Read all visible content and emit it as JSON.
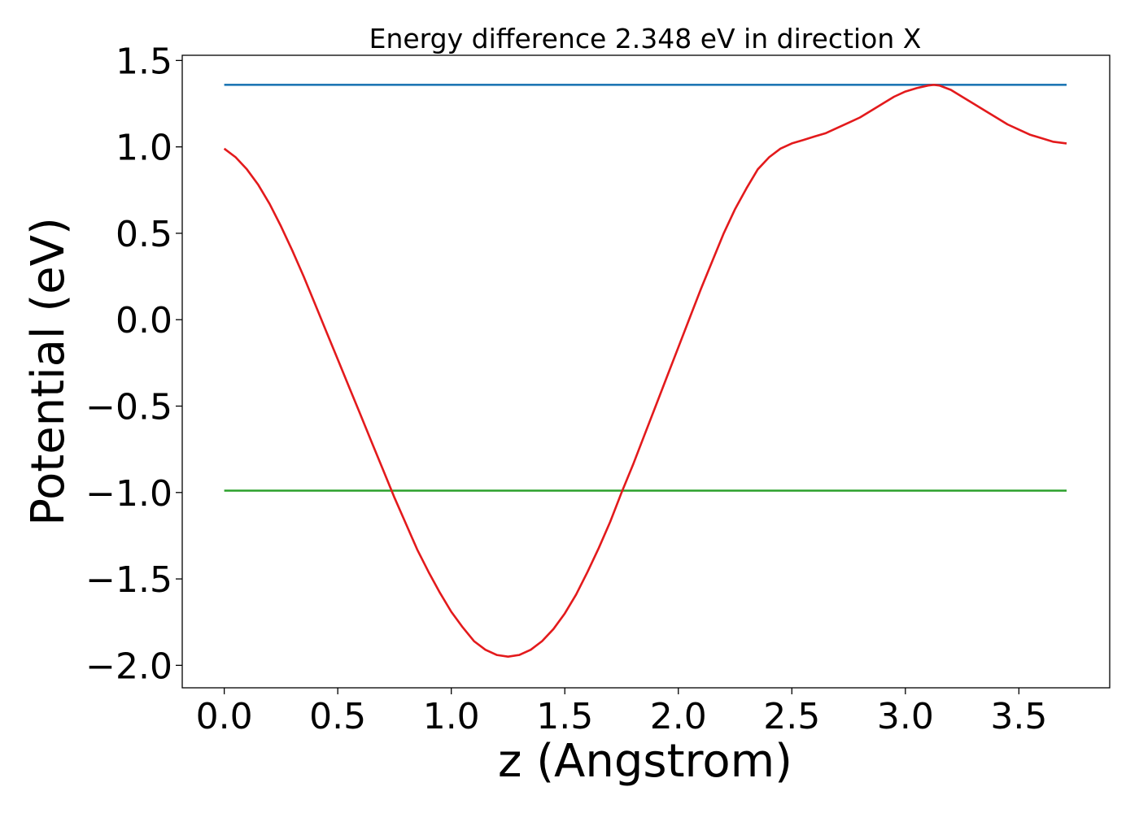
{
  "chart_data": {
    "type": "line",
    "title": "Energy difference 2.348 eV in direction X",
    "xlabel": "z (Angstrom)",
    "ylabel": "Potential (eV)",
    "xlim": [
      -0.185,
      3.9
    ],
    "ylim": [
      -2.13,
      1.53
    ],
    "xticks": [
      0.0,
      0.5,
      1.0,
      1.5,
      2.0,
      2.5,
      3.0,
      3.5
    ],
    "xtick_labels": [
      "0.0",
      "0.5",
      "1.0",
      "1.5",
      "2.0",
      "2.5",
      "3.0",
      "3.5"
    ],
    "yticks": [
      -2.0,
      -1.5,
      -1.0,
      -0.5,
      0.0,
      0.5,
      1.0,
      1.5
    ],
    "ytick_labels": [
      "−2.0",
      "−1.5",
      "−1.0",
      "−0.5",
      "0.0",
      "0.5",
      "1.0",
      "1.5"
    ],
    "grid": false,
    "series": [
      {
        "color": "#1f77b4",
        "x": [
          0.0,
          3.71
        ],
        "y": [
          1.359,
          1.359
        ]
      },
      {
        "color": "#2ca02c",
        "x": [
          0.0,
          3.71
        ],
        "y": [
          -0.989,
          -0.989
        ]
      },
      {
        "color": "#e31a1c",
        "x": [
          0.0,
          0.05,
          0.1,
          0.15,
          0.2,
          0.25,
          0.3,
          0.35,
          0.4,
          0.45,
          0.5,
          0.55,
          0.6,
          0.65,
          0.7,
          0.75,
          0.8,
          0.85,
          0.9,
          0.95,
          1.0,
          1.05,
          1.1,
          1.15,
          1.2,
          1.25,
          1.3,
          1.35,
          1.4,
          1.45,
          1.5,
          1.55,
          1.6,
          1.65,
          1.7,
          1.75,
          1.8,
          1.85,
          1.9,
          1.95,
          2.0,
          2.05,
          2.1,
          2.15,
          2.2,
          2.25,
          2.3,
          2.35,
          2.4,
          2.45,
          2.5,
          2.55,
          2.6,
          2.65,
          2.7,
          2.75,
          2.8,
          2.85,
          2.9,
          2.95,
          3.0,
          3.05,
          3.1,
          3.125,
          3.15,
          3.2,
          3.25,
          3.3,
          3.35,
          3.4,
          3.45,
          3.5,
          3.55,
          3.6,
          3.65,
          3.71
        ],
        "y": [
          0.99,
          0.94,
          0.87,
          0.78,
          0.67,
          0.54,
          0.4,
          0.25,
          0.09,
          -0.07,
          -0.23,
          -0.39,
          -0.55,
          -0.71,
          -0.87,
          -1.03,
          -1.18,
          -1.33,
          -1.46,
          -1.58,
          -1.69,
          -1.78,
          -1.86,
          -1.91,
          -1.94,
          -1.95,
          -1.94,
          -1.91,
          -1.86,
          -1.79,
          -1.7,
          -1.59,
          -1.46,
          -1.32,
          -1.17,
          -1.0,
          -0.84,
          -0.67,
          -0.5,
          -0.33,
          -0.16,
          0.01,
          0.18,
          0.34,
          0.5,
          0.64,
          0.76,
          0.87,
          0.94,
          0.99,
          1.02,
          1.04,
          1.06,
          1.08,
          1.11,
          1.14,
          1.17,
          1.21,
          1.25,
          1.29,
          1.32,
          1.34,
          1.355,
          1.359,
          1.355,
          1.33,
          1.29,
          1.25,
          1.21,
          1.17,
          1.13,
          1.1,
          1.07,
          1.05,
          1.03,
          1.02
        ]
      }
    ]
  }
}
